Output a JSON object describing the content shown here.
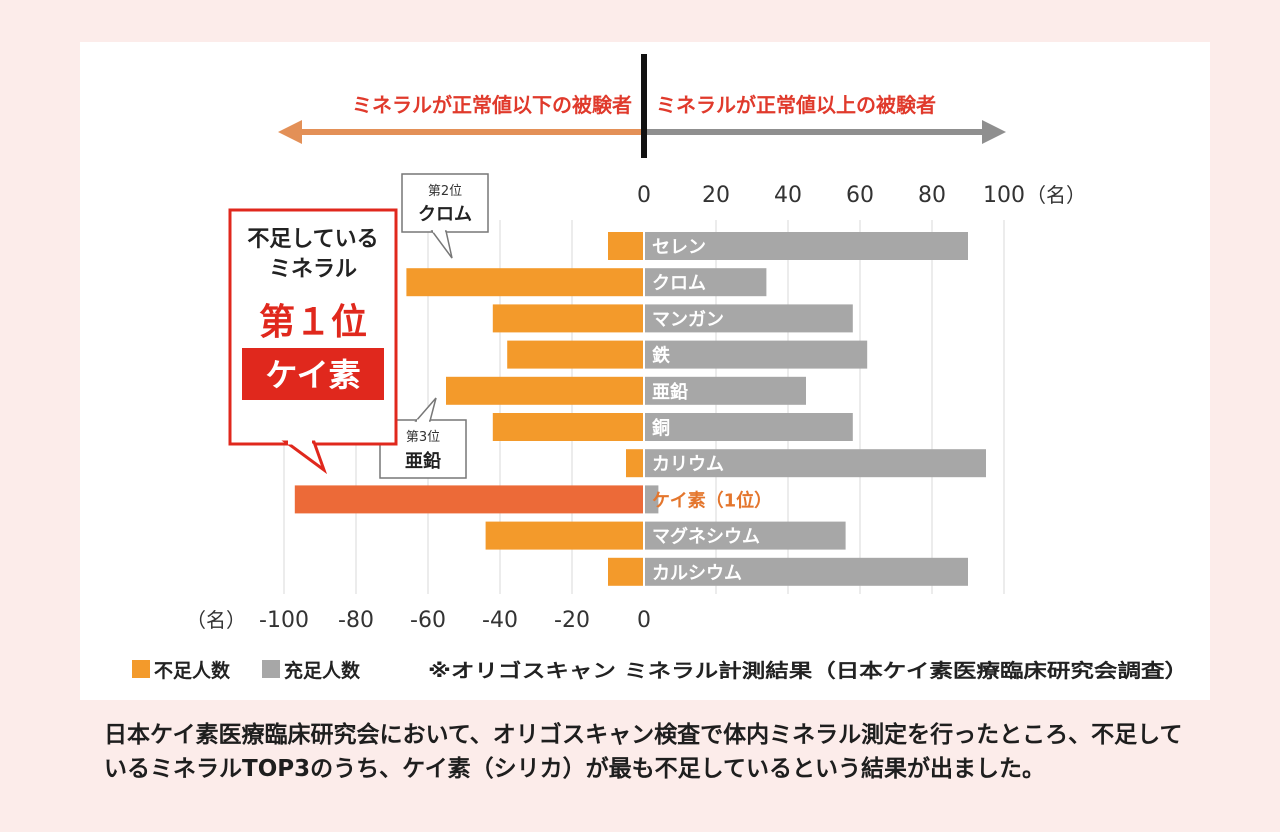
{
  "chart_data": {
    "type": "bar",
    "orientation": "horizontal",
    "layout": "diverging",
    "categories": [
      "セレン",
      "クロム",
      "マンガン",
      "鉄",
      "亜鉛",
      "銅",
      "カリウム",
      "ケイ素（1位）",
      "マグネシウム",
      "カルシウム"
    ],
    "series": [
      {
        "name": "不足人数",
        "values": [
          10,
          66,
          42,
          38,
          55,
          42,
          5,
          97,
          44,
          10
        ],
        "color": "#f39a2b"
      },
      {
        "name": "充足人数",
        "values": [
          90,
          34,
          58,
          62,
          45,
          58,
          95,
          4,
          56,
          90
        ],
        "color": "#a7a7a7"
      }
    ],
    "highlight": {
      "category_index": 7,
      "deficit_color": "#ec6a38",
      "label_color": "#e4762d"
    },
    "top_ticks": [
      "0",
      "20",
      "40",
      "60",
      "80",
      "100"
    ],
    "top_unit": "（名）",
    "bottom_ticks": [
      "-100",
      "-80",
      "-60",
      "-40",
      "-20",
      "0"
    ],
    "bottom_unit": "（名）",
    "xlim": [
      -100,
      100
    ],
    "header_left": "ミネラルが正常値以下の被験者",
    "header_right": "ミネラルが正常値以上の被験者",
    "header_color": "#e03a2c",
    "legend": [
      "不足人数",
      "充足人数"
    ],
    "source": "※オリゴスキャン ミネラル計測結果（日本ケイ素医療臨床研究会調査）",
    "callout_main": {
      "line1": "不足している",
      "line2": "ミネラル",
      "rank": "第１位",
      "name": "ケイ素",
      "accent": "#e0281d"
    },
    "callout_2": {
      "rank": "第2位",
      "name": "クロム"
    },
    "callout_3": {
      "rank": "第3位",
      "name": "亜鉛"
    }
  },
  "caption": "日本ケイ素医療臨床研究会において、オリゴスキャン検査で体内ミネラル測定を行ったところ、不足しているミネラルTOP3のうち、ケイ素（シリカ）が最も不足しているという結果が出ました。"
}
